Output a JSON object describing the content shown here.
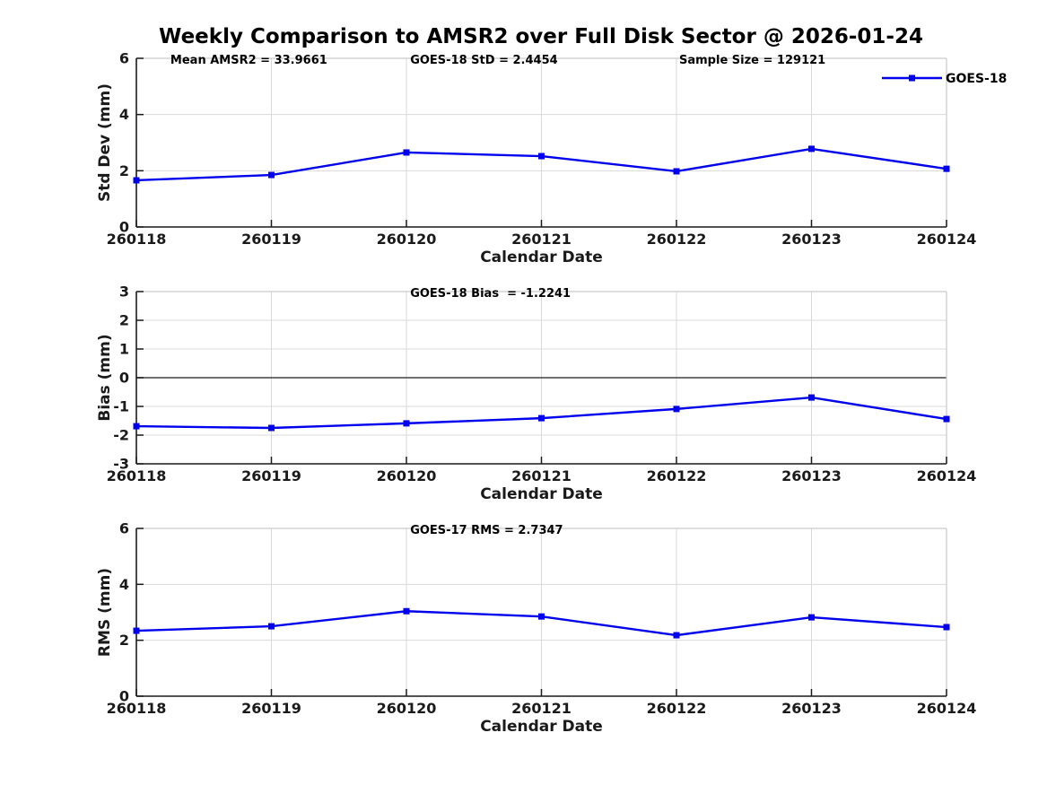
{
  "figure": {
    "title": "Weekly Comparison to AMSR2 over Full Disk Sector @ 2026-01-24"
  },
  "colors": {
    "line": "#0000EE",
    "grid": "#D9D9D9",
    "spine_dark": "#1A1A1A",
    "spine_light": "#C9C9C9",
    "zero_line": "#404040",
    "text": "#000000"
  },
  "legend": {
    "label": "GOES-18"
  },
  "chart_data": [
    {
      "type": "line",
      "ylabel": "Std Dev (mm)",
      "xlabel": "Calendar Date",
      "annotations": [
        "Mean AMSR2 = 33.9661",
        "GOES-18 StD = 2.4454",
        "Sample Size = 129121"
      ],
      "categories": [
        "260118",
        "260119",
        "260120",
        "260121",
        "260122",
        "260123",
        "260124"
      ],
      "series": [
        {
          "name": "GOES-18",
          "values": [
            1.66,
            1.85,
            2.65,
            2.52,
            1.98,
            2.78,
            2.07
          ]
        }
      ],
      "ylim": [
        0,
        6
      ],
      "yticks": [
        0,
        2,
        4,
        6
      ],
      "grid": true,
      "zero_line": false,
      "legend": true,
      "legend_position": "top-right"
    },
    {
      "type": "line",
      "ylabel": "Bias (mm)",
      "xlabel": "Calendar Date",
      "annotations": [
        "GOES-18 Bias  = -1.2241"
      ],
      "categories": [
        "260118",
        "260119",
        "260120",
        "260121",
        "260122",
        "260123",
        "260124"
      ],
      "series": [
        {
          "name": "GOES-18",
          "values": [
            -1.69,
            -1.75,
            -1.59,
            -1.41,
            -1.09,
            -0.69,
            -1.44
          ]
        }
      ],
      "ylim": [
        -3,
        3
      ],
      "yticks": [
        -3,
        -2,
        -1,
        0,
        1,
        2,
        3
      ],
      "grid": true,
      "zero_line": true,
      "legend": false
    },
    {
      "type": "line",
      "ylabel": "RMS (mm)",
      "xlabel": "Calendar Date",
      "annotations": [
        "GOES-17 RMS = 2.7347"
      ],
      "categories": [
        "260118",
        "260119",
        "260120",
        "260121",
        "260122",
        "260123",
        "260124"
      ],
      "series": [
        {
          "name": "GOES-18",
          "values": [
            2.34,
            2.5,
            3.04,
            2.85,
            2.18,
            2.82,
            2.47
          ]
        }
      ],
      "ylim": [
        0,
        6
      ],
      "yticks": [
        0,
        2,
        4,
        6
      ],
      "grid": true,
      "zero_line": false,
      "legend": false
    }
  ]
}
